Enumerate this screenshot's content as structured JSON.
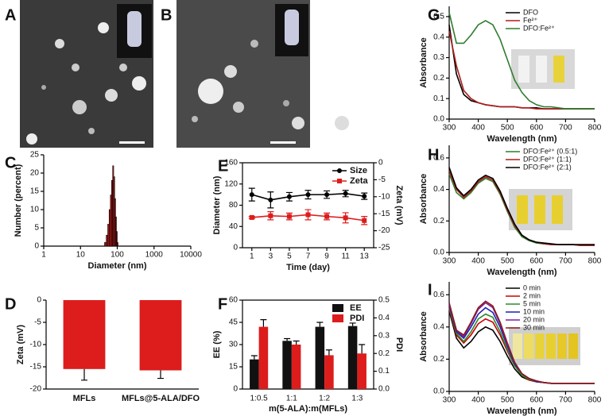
{
  "panel_labels": [
    "A",
    "B",
    "G",
    "C",
    "E",
    "H",
    "D",
    "F",
    "I"
  ],
  "chart_data": [
    {
      "type": "histogram",
      "xlabel": "Diameter (nm)",
      "ylabel": "Number (percent)",
      "xscale": "log",
      "xlim": [
        1,
        10000
      ],
      "xticks": [
        1,
        10,
        100,
        1000,
        10000
      ],
      "ylim": [
        0,
        25
      ],
      "yticks": [
        0,
        5,
        10,
        15,
        20,
        25
      ],
      "bins": [
        45,
        50,
        55,
        60,
        65,
        70,
        75,
        80,
        85,
        90,
        95,
        100,
        105
      ],
      "counts": [
        1,
        3,
        6,
        10,
        14,
        18,
        22,
        19,
        13,
        8,
        4,
        1
      ],
      "color": "#b01c1c"
    },
    {
      "type": "bar",
      "ylabel": "Zeta (mV)",
      "categories": [
        "MFLs",
        "MFLs@5-ALA/DFO"
      ],
      "values": [
        -15.5,
        -15.8
      ],
      "errors": [
        2.5,
        1.8
      ],
      "color": "#dd1c1c",
      "ylim": [
        -20,
        0
      ],
      "yticks": [
        -20,
        -15,
        -10,
        -5,
        0
      ]
    },
    {
      "type": "line",
      "xlabel": "Time (day)",
      "ylabel": "Diameter (nm)",
      "y2label": "Zeta (mV)",
      "x": [
        1,
        3,
        5,
        7,
        9,
        11,
        13
      ],
      "xlim": [
        0,
        14
      ],
      "xticks": [
        1,
        3,
        5,
        7,
        9,
        11,
        13
      ],
      "ylim": [
        0,
        160
      ],
      "yticks": [
        0,
        40,
        80,
        120,
        160
      ],
      "y2lim": [
        -25,
        0
      ],
      "y2ticks": [
        -25,
        -20,
        -15,
        -10,
        -5,
        0
      ],
      "legend": "upper right",
      "series": [
        {
          "name": "Size",
          "color": "#000000",
          "marker": "circle",
          "values": [
            100,
            90,
            96,
            100,
            100,
            102,
            97
          ],
          "errors": [
            12,
            15,
            8,
            8,
            7,
            6,
            6
          ]
        },
        {
          "name": "Zeta",
          "color": "#dd1c1c",
          "marker": "square",
          "axis": "y2",
          "values": [
            -16.1,
            -15.6,
            -15.8,
            -15.3,
            -15.8,
            -16.2,
            -17
          ],
          "errors": [
            0.3,
            1.2,
            1.0,
            1.5,
            1.0,
            1.5,
            1.2
          ]
        }
      ]
    },
    {
      "type": "bar",
      "xlabel": "m(5-ALA):m(MFLs)",
      "ylabel": "EE (%)",
      "y2label": "PDI",
      "categories": [
        "1:0.5",
        "1:1",
        "1:2",
        "1:3"
      ],
      "ylim": [
        0,
        60
      ],
      "yticks": [
        0,
        15,
        30,
        45,
        60
      ],
      "y2lim": [
        0,
        0.5
      ],
      "y2ticks": [
        {
          "value": 0,
          "label": "0.0"
        },
        0.1,
        0.2,
        0.3,
        0.4,
        0.5
      ],
      "legend": "upper right",
      "series": [
        {
          "name": "EE",
          "color": "#111111",
          "values": [
            20,
            32.5,
            42,
            42.5
          ],
          "errors": [
            2.5,
            1.5,
            3,
            2
          ]
        },
        {
          "name": "PDI",
          "color": "#dd1c1c",
          "axis": "y2",
          "values": [
            0.35,
            0.25,
            0.19,
            0.2
          ],
          "errors": [
            0.04,
            0.02,
            0.03,
            0.05
          ]
        }
      ]
    },
    {
      "type": "line",
      "xlabel": "Wavelength (nm)",
      "ylabel": "Absorbance",
      "x": [
        300,
        325,
        350,
        375,
        400,
        425,
        450,
        475,
        500,
        525,
        550,
        575,
        600,
        625,
        650,
        675,
        700,
        725,
        750,
        775,
        800
      ],
      "xlim": [
        300,
        800
      ],
      "xticks": [
        300,
        400,
        500,
        600,
        700,
        800
      ],
      "ylim": [
        0,
        0.55
      ],
      "yticks": [
        {
          "value": 0,
          "label": "0.0"
        },
        0.1,
        0.2,
        0.3,
        0.4,
        0.5
      ],
      "legend": "upper right",
      "series": [
        {
          "name": "DFO",
          "color": "#000000",
          "values": [
            0.46,
            0.22,
            0.12,
            0.09,
            0.08,
            0.07,
            0.065,
            0.06,
            0.06,
            0.06,
            0.055,
            0.055,
            0.055,
            0.05,
            0.05,
            0.05,
            0.05,
            0.05,
            0.05,
            0.05,
            0.05
          ]
        },
        {
          "name": "Fe²⁺",
          "color": "#b01c1c",
          "values": [
            0.43,
            0.26,
            0.14,
            0.1,
            0.08,
            0.07,
            0.065,
            0.06,
            0.06,
            0.06,
            0.055,
            0.055,
            0.05,
            0.05,
            0.05,
            0.05,
            0.05,
            0.05,
            0.05,
            0.05,
            0.05
          ]
        },
        {
          "name": "DFO:Fe²⁺",
          "color": "#2e7d2e",
          "values": [
            0.52,
            0.37,
            0.37,
            0.41,
            0.46,
            0.48,
            0.46,
            0.39,
            0.29,
            0.19,
            0.13,
            0.09,
            0.07,
            0.06,
            0.06,
            0.055,
            0.05,
            0.05,
            0.05,
            0.05,
            0.05
          ]
        }
      ]
    },
    {
      "type": "line",
      "xlabel": "Wavelength (nm)",
      "ylabel": "Absorbance",
      "x": [
        300,
        325,
        350,
        375,
        400,
        425,
        450,
        475,
        500,
        525,
        550,
        575,
        600,
        625,
        650,
        675,
        700,
        725,
        750,
        775,
        800
      ],
      "xlim": [
        300,
        800
      ],
      "xticks": [
        300,
        400,
        500,
        600,
        700,
        800
      ],
      "ylim": [
        0,
        0.68
      ],
      "yticks": [
        {
          "value": 0,
          "label": "0.0"
        },
        0.2,
        0.4,
        0.6
      ],
      "legend": "upper right",
      "series": [
        {
          "name": "DFO:Fe²⁺ (0.5:1)",
          "color": "#2e7d2e",
          "values": [
            0.5,
            0.38,
            0.34,
            0.38,
            0.44,
            0.47,
            0.45,
            0.37,
            0.26,
            0.16,
            0.1,
            0.075,
            0.06,
            0.055,
            0.05,
            0.05,
            0.05,
            0.05,
            0.045,
            0.045,
            0.045
          ]
        },
        {
          "name": "DFO:Fe²⁺ (1:1)",
          "color": "#b01c1c",
          "values": [
            0.52,
            0.4,
            0.35,
            0.39,
            0.45,
            0.48,
            0.46,
            0.38,
            0.27,
            0.17,
            0.11,
            0.08,
            0.065,
            0.055,
            0.05,
            0.05,
            0.05,
            0.05,
            0.045,
            0.045,
            0.045
          ]
        },
        {
          "name": "DFO:Fe²⁺ (2:1)",
          "color": "#000000",
          "values": [
            0.54,
            0.41,
            0.36,
            0.4,
            0.46,
            0.49,
            0.47,
            0.39,
            0.28,
            0.18,
            0.11,
            0.08,
            0.065,
            0.06,
            0.055,
            0.05,
            0.05,
            0.05,
            0.05,
            0.05,
            0.05
          ]
        }
      ]
    },
    {
      "type": "line",
      "xlabel": "Wavelength (nm)",
      "ylabel": "Absorbance",
      "x": [
        300,
        325,
        350,
        375,
        400,
        425,
        450,
        475,
        500,
        525,
        550,
        575,
        600,
        625,
        650,
        675,
        700,
        725,
        750,
        775,
        800
      ],
      "xlim": [
        300,
        800
      ],
      "xticks": [
        300,
        400,
        500,
        600,
        700,
        800
      ],
      "ylim": [
        0,
        0.68
      ],
      "yticks": [
        {
          "value": 0,
          "label": "0.0"
        },
        0.2,
        0.4,
        0.6
      ],
      "legend": "upper right",
      "series": [
        {
          "name": "0 min",
          "color": "#000000",
          "values": [
            0.5,
            0.33,
            0.27,
            0.31,
            0.37,
            0.4,
            0.38,
            0.31,
            0.22,
            0.14,
            0.09,
            0.07,
            0.06,
            0.055,
            0.05,
            0.05,
            0.05,
            0.05,
            0.05,
            0.05,
            0.05
          ]
        },
        {
          "name": "2 min",
          "color": "#cc0000",
          "values": [
            0.51,
            0.35,
            0.3,
            0.35,
            0.42,
            0.45,
            0.43,
            0.35,
            0.25,
            0.16,
            0.1,
            0.07,
            0.06,
            0.055,
            0.05,
            0.05,
            0.05,
            0.05,
            0.05,
            0.05,
            0.05
          ]
        },
        {
          "name": "5 min",
          "color": "#2e8b2e",
          "values": [
            0.52,
            0.36,
            0.31,
            0.37,
            0.45,
            0.48,
            0.46,
            0.37,
            0.26,
            0.16,
            0.1,
            0.075,
            0.06,
            0.055,
            0.05,
            0.05,
            0.05,
            0.05,
            0.05,
            0.05,
            0.05
          ]
        },
        {
          "name": "10 min",
          "color": "#1f1fb4",
          "values": [
            0.53,
            0.37,
            0.33,
            0.4,
            0.48,
            0.52,
            0.49,
            0.4,
            0.28,
            0.17,
            0.11,
            0.08,
            0.06,
            0.055,
            0.05,
            0.05,
            0.05,
            0.05,
            0.05,
            0.05,
            0.05
          ]
        },
        {
          "name": "20 min",
          "color": "#7b1fa2",
          "values": [
            0.54,
            0.38,
            0.34,
            0.42,
            0.51,
            0.55,
            0.52,
            0.42,
            0.29,
            0.18,
            0.11,
            0.08,
            0.065,
            0.055,
            0.05,
            0.05,
            0.05,
            0.05,
            0.05,
            0.05,
            0.05
          ]
        },
        {
          "name": "30 min",
          "color": "#8b1a1a",
          "values": [
            0.55,
            0.38,
            0.35,
            0.43,
            0.52,
            0.56,
            0.53,
            0.43,
            0.3,
            0.18,
            0.11,
            0.08,
            0.065,
            0.055,
            0.05,
            0.05,
            0.05,
            0.05,
            0.05,
            0.05,
            0.05
          ]
        }
      ]
    }
  ]
}
